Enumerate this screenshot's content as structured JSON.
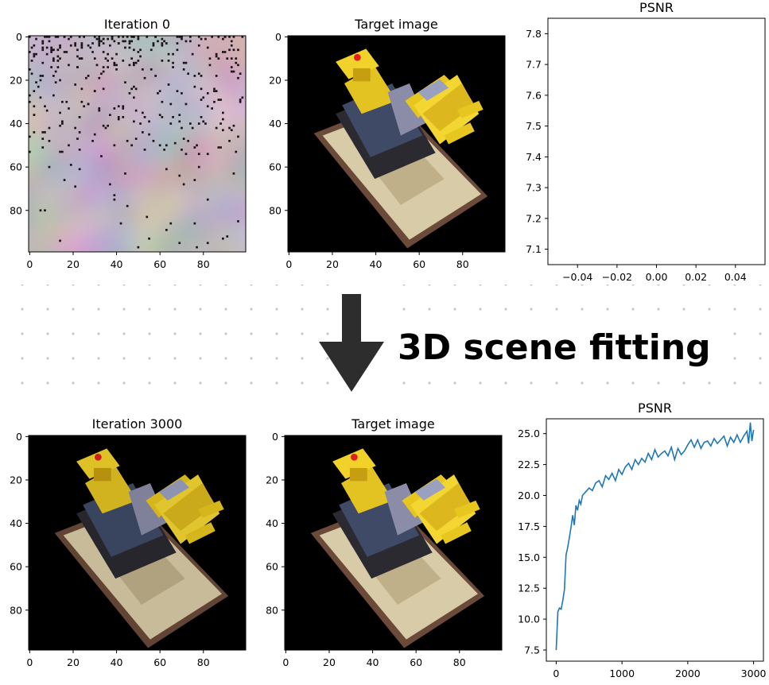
{
  "caption": "3D scene fitting",
  "chart_data": [
    {
      "type": "image",
      "title": "Iteration 0",
      "x_ticks": [
        "0",
        "20",
        "40",
        "60",
        "80"
      ],
      "y_ticks": [
        "0",
        "20",
        "40",
        "60",
        "80"
      ],
      "content": "noisy random initialization"
    },
    {
      "type": "image",
      "title": "Target image",
      "x_ticks": [
        "0",
        "20",
        "40",
        "60",
        "80"
      ],
      "y_ticks": [
        "0",
        "20",
        "40",
        "60",
        "80"
      ],
      "content": "yellow lego bulldozer on black background"
    },
    {
      "type": "line",
      "title": "PSNR",
      "x_ticks": [
        "−0.04",
        "−0.02",
        "0.00",
        "0.02",
        "0.04"
      ],
      "y_ticks": [
        "7.1",
        "7.2",
        "7.3",
        "7.4",
        "7.5",
        "7.6",
        "7.7",
        "7.8"
      ],
      "xlim": [
        -0.055,
        0.055
      ],
      "ylim": [
        7.05,
        7.85
      ],
      "series": [
        {
          "x": [],
          "y": []
        }
      ]
    },
    {
      "type": "image",
      "title": "Iteration 3000",
      "x_ticks": [
        "0",
        "20",
        "40",
        "60",
        "80"
      ],
      "y_ticks": [
        "0",
        "20",
        "40",
        "60",
        "80"
      ],
      "content": "reconstructed lego bulldozer on black background"
    },
    {
      "type": "image",
      "title": "Target image",
      "x_ticks": [
        "0",
        "20",
        "40",
        "60",
        "80"
      ],
      "y_ticks": [
        "0",
        "20",
        "40",
        "60",
        "80"
      ],
      "content": "yellow lego bulldozer on black background"
    },
    {
      "type": "line",
      "title": "PSNR",
      "x_ticks": [
        "0",
        "1000",
        "2000",
        "3000"
      ],
      "y_ticks": [
        "7.5",
        "10.0",
        "12.5",
        "15.0",
        "17.5",
        "20.0",
        "22.5",
        "25.0"
      ],
      "xlim": [
        -150,
        3150
      ],
      "ylim": [
        6.6,
        26.2
      ],
      "series": [
        {
          "color": "#1f77b4",
          "x": [
            0,
            25,
            50,
            75,
            100,
            125,
            150,
            175,
            200,
            225,
            250,
            275,
            300,
            325,
            350,
            375,
            400,
            450,
            500,
            550,
            600,
            650,
            700,
            750,
            800,
            850,
            900,
            950,
            1000,
            1050,
            1100,
            1150,
            1200,
            1250,
            1300,
            1350,
            1400,
            1450,
            1500,
            1550,
            1600,
            1650,
            1700,
            1750,
            1800,
            1850,
            1900,
            1950,
            2000,
            2050,
            2100,
            2150,
            2200,
            2250,
            2300,
            2350,
            2400,
            2450,
            2500,
            2550,
            2600,
            2650,
            2700,
            2750,
            2800,
            2850,
            2900,
            2925,
            2950,
            2975,
            3000
          ],
          "y": [
            7.5,
            10.6,
            10.9,
            10.8,
            11.5,
            12.4,
            15.2,
            15.8,
            16.6,
            17.4,
            18.4,
            17.6,
            19.2,
            18.8,
            19.6,
            19.3,
            20.0,
            20.3,
            20.6,
            20.4,
            21.0,
            21.2,
            20.7,
            21.6,
            21.3,
            21.8,
            21.2,
            22.1,
            21.7,
            22.3,
            22.6,
            22.1,
            22.9,
            22.5,
            23.0,
            22.7,
            23.4,
            22.9,
            23.7,
            23.1,
            23.4,
            23.6,
            23.2,
            23.9,
            22.9,
            23.8,
            23.3,
            23.6,
            24.1,
            24.5,
            23.9,
            24.5,
            23.8,
            24.3,
            24.4,
            24.0,
            24.6,
            24.2,
            24.5,
            24.8,
            24.0,
            24.7,
            24.3,
            24.9,
            24.3,
            24.8,
            25.2,
            24.2,
            25.9,
            24.4,
            25.3
          ]
        }
      ]
    }
  ]
}
